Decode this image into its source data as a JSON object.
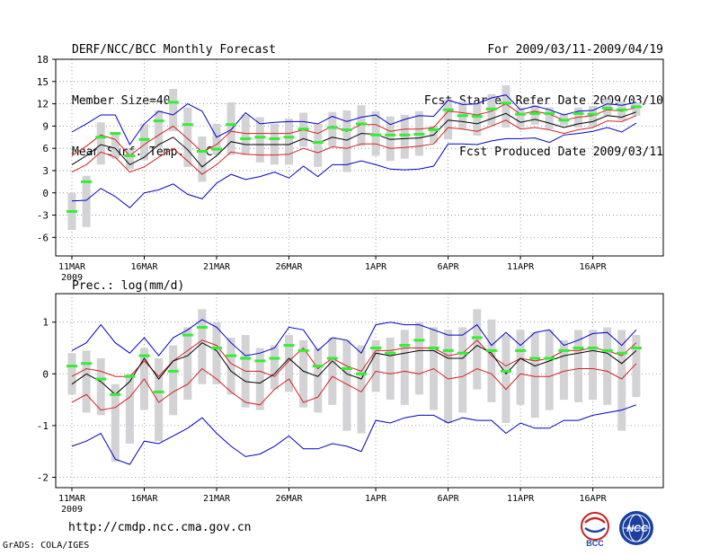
{
  "header": {
    "title": "DERF/NCC/BCC Monthly Forecast",
    "member_size": "Member Size=40",
    "variable": "Mean Surf. Temp.: °C",
    "period": "For 2009/03/11-2009/04/19",
    "started": "Fcst Started Refer Date 2009/03/10",
    "produced": "Fcst Produced Date 2009/03/11"
  },
  "footer": {
    "url": "http://cmdp.ncc.cma.gov.cn",
    "credit": "GrADS: COLA/IGES",
    "logo_bcc": "BCC",
    "logo_ncc": "NCC"
  },
  "colors": {
    "line_mean": "#000000",
    "line_spread": "#d62020",
    "line_extreme": "#0000cc",
    "box": "#d3d3d6",
    "green": "#33ee33",
    "grid": "#888888"
  },
  "chart_data": [
    {
      "type": "line",
      "name": "temperature",
      "title": "",
      "ylabel": "Mean Surf. Temp.: °C",
      "ylim": [
        -8.5,
        18
      ],
      "yticks": [
        -6,
        -3,
        0,
        3,
        6,
        9,
        12,
        15,
        18
      ],
      "xticks": [
        {
          "day": 0,
          "label": "11MAR",
          "sub": "2009"
        },
        {
          "day": 5,
          "label": "16MAR",
          "sub": ""
        },
        {
          "day": 10,
          "label": "21MAR",
          "sub": ""
        },
        {
          "day": 15,
          "label": "26MAR",
          "sub": ""
        },
        {
          "day": 21,
          "label": "1APR",
          "sub": ""
        },
        {
          "day": 26,
          "label": "6APR",
          "sub": ""
        },
        {
          "day": 31,
          "label": "11APR",
          "sub": ""
        },
        {
          "day": 36,
          "label": "16APR",
          "sub": ""
        }
      ],
      "series": [
        {
          "name": "ensemble_max",
          "color": "blue",
          "values": [
            8.2,
            9.3,
            10.5,
            10.5,
            6.5,
            9.3,
            11,
            10.5,
            12,
            11,
            7.5,
            8.5,
            10.8,
            9.3,
            9.5,
            9.6,
            9.6,
            9.3,
            10.3,
            9.6,
            10.2,
            10.5,
            9.2,
            9.9,
            10.4,
            10.3,
            12.5,
            11.9,
            12,
            12.8,
            13.2,
            11.2,
            11.7,
            11.2,
            10.5,
            11,
            11.1,
            12,
            11.8,
            12.2
          ]
        },
        {
          "name": "upper_spread",
          "color": "red",
          "values": [
            5,
            6.3,
            7.8,
            7.2,
            5,
            6.5,
            7.8,
            9,
            7.3,
            5.5,
            6.5,
            8.3,
            8,
            8,
            8,
            8,
            8.5,
            8,
            9,
            8.3,
            9.2,
            9.2,
            8.3,
            8.6,
            8.6,
            8.8,
            11,
            10.8,
            10.5,
            11,
            12,
            10.6,
            11,
            10.6,
            9.8,
            10.2,
            10.4,
            11.2,
            11,
            11.5
          ]
        },
        {
          "name": "ensemble_mean",
          "color": "black",
          "values": [
            3.8,
            5,
            6.5,
            6,
            3.8,
            4.8,
            6.5,
            7.5,
            5.8,
            3.5,
            5,
            6.9,
            6.5,
            6.5,
            6.5,
            6.5,
            7.3,
            6.7,
            7.5,
            7.1,
            8,
            7.9,
            7.2,
            7.3,
            7.4,
            7.8,
            9.8,
            9.6,
            9.3,
            10,
            10.7,
            9.5,
            9.9,
            9.4,
            8.8,
            9.3,
            9.6,
            10.4,
            10.2,
            10.9
          ]
        },
        {
          "name": "lower_spread",
          "color": "red",
          "values": [
            2.8,
            3.8,
            5.5,
            4.8,
            2.8,
            3.5,
            4.8,
            6,
            4.3,
            2.5,
            3.8,
            5.5,
            5.2,
            5.1,
            5.1,
            5.2,
            6,
            5.4,
            6.2,
            6,
            6.6,
            6.6,
            6,
            6.1,
            6.3,
            6.6,
            8.8,
            8.6,
            8.3,
            9,
            9.8,
            8.6,
            8.8,
            8.5,
            8,
            8.5,
            8.8,
            9.7,
            9.6,
            10.4
          ]
        },
        {
          "name": "ensemble_min",
          "color": "blue",
          "values": [
            -1.1,
            -1,
            0.6,
            -0.5,
            -2,
            0,
            0.4,
            1.2,
            -0.2,
            -0.8,
            1.3,
            2.5,
            1.8,
            2.2,
            2.8,
            2,
            3.6,
            2.2,
            3.8,
            3.8,
            4.3,
            3.8,
            3.2,
            3.1,
            3.2,
            3.6,
            6.6,
            6.6,
            6.5,
            7,
            7.3,
            7.3,
            7.4,
            6.8,
            7.8,
            8,
            8.3,
            8.8,
            8.2,
            9.4
          ]
        }
      ],
      "boxes": [
        {
          "low": -5,
          "high": 0
        },
        {
          "low": -4.6,
          "high": 2.3
        },
        {
          "low": 3.8,
          "high": 9.5
        },
        {
          "low": 4.6,
          "high": 8.2
        },
        {
          "low": 3.2,
          "high": 5.8
        },
        {
          "low": 4.4,
          "high": 9.3
        },
        {
          "low": 6.1,
          "high": 11.1
        },
        {
          "low": 8.3,
          "high": 14
        },
        {
          "low": 3.5,
          "high": 11.5
        },
        {
          "low": 1.5,
          "high": 7.6
        },
        {
          "low": 5.1,
          "high": 9.3
        },
        {
          "low": 5.1,
          "high": 12.2
        },
        {
          "low": 5.1,
          "high": 10.5
        },
        {
          "low": 4.1,
          "high": 10.2
        },
        {
          "low": 3.8,
          "high": 9.3
        },
        {
          "low": 3.8,
          "high": 10
        },
        {
          "low": 6.2,
          "high": 10.8
        },
        {
          "low": 3.5,
          "high": 9.3
        },
        {
          "low": 6.2,
          "high": 10.9
        },
        {
          "low": 2.8,
          "high": 11.1
        },
        {
          "low": 6.3,
          "high": 11.8
        },
        {
          "low": 5,
          "high": 11
        },
        {
          "low": 4.3,
          "high": 10.3
        },
        {
          "low": 4.6,
          "high": 10.5
        },
        {
          "low": 5,
          "high": 11
        },
        {
          "low": 6.7,
          "high": 9
        },
        {
          "low": 7.2,
          "high": 12.6
        },
        {
          "low": 8.6,
          "high": 12.3
        },
        {
          "low": 7.7,
          "high": 12.1
        },
        {
          "low": 9.1,
          "high": 13.3
        },
        {
          "low": 8.8,
          "high": 14.5
        },
        {
          "low": 8.8,
          "high": 11.5
        },
        {
          "low": 9.2,
          "high": 11.8
        },
        {
          "low": 8.6,
          "high": 11.5
        },
        {
          "low": 9.1,
          "high": 10.7
        },
        {
          "low": 8.8,
          "high": 11.5
        },
        {
          "low": 8.9,
          "high": 11.7
        },
        {
          "low": 10.4,
          "high": 12.6
        },
        {
          "low": 9.8,
          "high": 12.3
        },
        {
          "low": 10.4,
          "high": 12.2
        }
      ],
      "green_marks": [
        -2.5,
        1.5,
        7.5,
        8,
        5,
        7.2,
        9.7,
        12.2,
        9.2,
        5.6,
        5.9,
        9.2,
        7.3,
        7.5,
        7.3,
        7.5,
        8.6,
        6.8,
        8.8,
        8.5,
        9.3,
        7.8,
        7.8,
        7.8,
        7.9,
        8.5,
        11.2,
        10.4,
        10.3,
        11.3,
        12.1,
        10.6,
        10.7,
        10.7,
        9.8,
        10.7,
        10.6,
        11.4,
        11.2,
        11.6
      ]
    },
    {
      "type": "line",
      "name": "precipitation",
      "title": "Prec.: log(mm/d)",
      "ylim": [
        -2.2,
        1.55
      ],
      "yticks": [
        -2,
        -1,
        0,
        1
      ],
      "xticks": [
        {
          "day": 0,
          "label": "11MAR",
          "sub": "2009"
        },
        {
          "day": 5,
          "label": "16MAR",
          "sub": ""
        },
        {
          "day": 10,
          "label": "21MAR",
          "sub": ""
        },
        {
          "day": 15,
          "label": "26MAR",
          "sub": ""
        },
        {
          "day": 21,
          "label": "1APR",
          "sub": ""
        },
        {
          "day": 26,
          "label": "6APR",
          "sub": ""
        },
        {
          "day": 31,
          "label": "11APR",
          "sub": ""
        },
        {
          "day": 36,
          "label": "16APR",
          "sub": ""
        }
      ],
      "series": [
        {
          "name": "ensemble_max",
          "color": "blue",
          "values": [
            0.45,
            0.6,
            0.95,
            0.6,
            0.4,
            0.7,
            0.35,
            0.7,
            0.85,
            1.05,
            0.9,
            0.6,
            0.35,
            0.4,
            0.5,
            0.9,
            0.85,
            0.45,
            0.7,
            0.65,
            0.4,
            0.95,
            1,
            0.95,
            0.95,
            0.85,
            0.75,
            0.75,
            0.95,
            0.55,
            0.8,
            0.55,
            0.8,
            0.85,
            0.55,
            0.65,
            0.78,
            0.8,
            0.55,
            0.85
          ]
        },
        {
          "name": "upper_spread",
          "color": "red",
          "values": [
            -0.05,
            0.1,
            0.05,
            -0.05,
            -0.05,
            0.25,
            -0.05,
            0.25,
            0.45,
            0.65,
            0.55,
            0.2,
            0.05,
            0.05,
            -0.05,
            0.25,
            0.5,
            0.1,
            0.3,
            0.15,
            0.05,
            0.45,
            0.45,
            0.5,
            0.5,
            0.5,
            0.35,
            0.4,
            0.65,
            0.35,
            0.15,
            0.3,
            0.25,
            0.3,
            0.45,
            0.45,
            0.5,
            0.45,
            0.35,
            0.6
          ]
        },
        {
          "name": "ensemble_mean",
          "color": "black",
          "values": [
            -0.2,
            0,
            -0.15,
            -0.4,
            -0.15,
            0.3,
            -0.1,
            0.25,
            0.35,
            0.6,
            0.45,
            0.05,
            -0.15,
            -0.18,
            0,
            0.3,
            0.05,
            -0.05,
            0.25,
            0,
            -0.1,
            0.4,
            0.35,
            0.4,
            0.45,
            0.45,
            0.3,
            0.3,
            0.55,
            0.4,
            0,
            0.3,
            0.15,
            0.25,
            0.35,
            0.4,
            0.45,
            0.4,
            0.2,
            0.45
          ]
        },
        {
          "name": "lower_spread",
          "color": "red",
          "values": [
            -0.55,
            -0.4,
            -0.7,
            -0.65,
            -0.45,
            -0.1,
            -0.55,
            -0.35,
            -0.2,
            0.1,
            -0.1,
            -0.35,
            -0.55,
            -0.6,
            -0.3,
            -0.1,
            -0.55,
            -0.45,
            -0.05,
            -0.2,
            -0.35,
            0.05,
            0,
            0.05,
            0,
            0.1,
            -0.1,
            -0.05,
            0.1,
            0,
            -0.3,
            0,
            -0.05,
            -0.05,
            0.05,
            0.1,
            0.1,
            0.05,
            -0.1,
            0.2
          ]
        },
        {
          "name": "ensemble_min",
          "color": "blue",
          "values": [
            -1.4,
            -1.3,
            -1.15,
            -1.65,
            -1.75,
            -1.3,
            -1.35,
            -1.2,
            -1.05,
            -0.85,
            -1.15,
            -1.4,
            -1.6,
            -1.55,
            -1.4,
            -1.2,
            -1.45,
            -1.45,
            -1.35,
            -1.4,
            -1.5,
            -0.9,
            -0.95,
            -0.85,
            -0.8,
            -0.8,
            -0.95,
            -0.85,
            -0.9,
            -0.9,
            -1.15,
            -0.95,
            -1.05,
            -1.05,
            -0.9,
            -0.9,
            -0.8,
            -0.75,
            -0.7,
            -0.6
          ]
        }
      ],
      "boxes": [
        {
          "low": -0.4,
          "high": 0.4
        },
        {
          "low": -0.75,
          "high": 0.45
        },
        {
          "low": -0.8,
          "high": 0.3
        },
        {
          "low": -1.7,
          "high": -0.2
        },
        {
          "low": -1.35,
          "high": 0
        },
        {
          "low": -0.7,
          "high": 0.5
        },
        {
          "low": -1.3,
          "high": 0.3
        },
        {
          "low": -0.8,
          "high": 0.55
        },
        {
          "low": -0.5,
          "high": 0.9
        },
        {
          "low": -0.2,
          "high": 1.25
        },
        {
          "low": -0.2,
          "high": 1
        },
        {
          "low": -0.4,
          "high": 0.7
        },
        {
          "low": -0.65,
          "high": 0.75
        },
        {
          "low": -0.7,
          "high": 0.5
        },
        {
          "low": -0.3,
          "high": 0.55
        },
        {
          "low": -0.35,
          "high": 0.75
        },
        {
          "low": -0.65,
          "high": 0.65
        },
        {
          "low": -0.75,
          "high": 0.5
        },
        {
          "low": -0.6,
          "high": 0.7
        },
        {
          "low": -1.1,
          "high": 0.65
        },
        {
          "low": -1.15,
          "high": 0.55
        },
        {
          "low": -0.35,
          "high": 0.65
        },
        {
          "low": -0.5,
          "high": 0.7
        },
        {
          "low": -0.6,
          "high": 0.85
        },
        {
          "low": -0.4,
          "high": 1
        },
        {
          "low": -0.7,
          "high": 0.9
        },
        {
          "low": -0.95,
          "high": 0.85
        },
        {
          "low": -0.75,
          "high": 0.9
        },
        {
          "low": -0.3,
          "high": 1.25
        },
        {
          "low": -0.55,
          "high": 1.05
        },
        {
          "low": -0.95,
          "high": 0.75
        },
        {
          "low": -0.6,
          "high": 0.85
        },
        {
          "low": -0.85,
          "high": 0.8
        },
        {
          "low": -0.7,
          "high": 0.85
        },
        {
          "low": -0.5,
          "high": 0.65
        },
        {
          "low": -0.55,
          "high": 0.85
        },
        {
          "low": -0.5,
          "high": 0.85
        },
        {
          "low": -0.6,
          "high": 0.9
        },
        {
          "low": -1.1,
          "high": 0.85
        },
        {
          "low": -0.45,
          "high": 0.75
        }
      ],
      "green_marks": [
        0.15,
        0.2,
        -0.1,
        -0.4,
        -0.05,
        0.35,
        -0.35,
        0.05,
        0.75,
        0.9,
        0.5,
        0.35,
        0.3,
        0.25,
        0.3,
        0.55,
        0.45,
        0.15,
        0.3,
        0.1,
        0,
        0.5,
        0.4,
        0.55,
        0.65,
        0.5,
        0.45,
        0.4,
        0.7,
        0.45,
        0.05,
        0.45,
        0.3,
        0.3,
        0.45,
        0.5,
        0.5,
        0.45,
        0.4,
        0.5
      ]
    }
  ]
}
